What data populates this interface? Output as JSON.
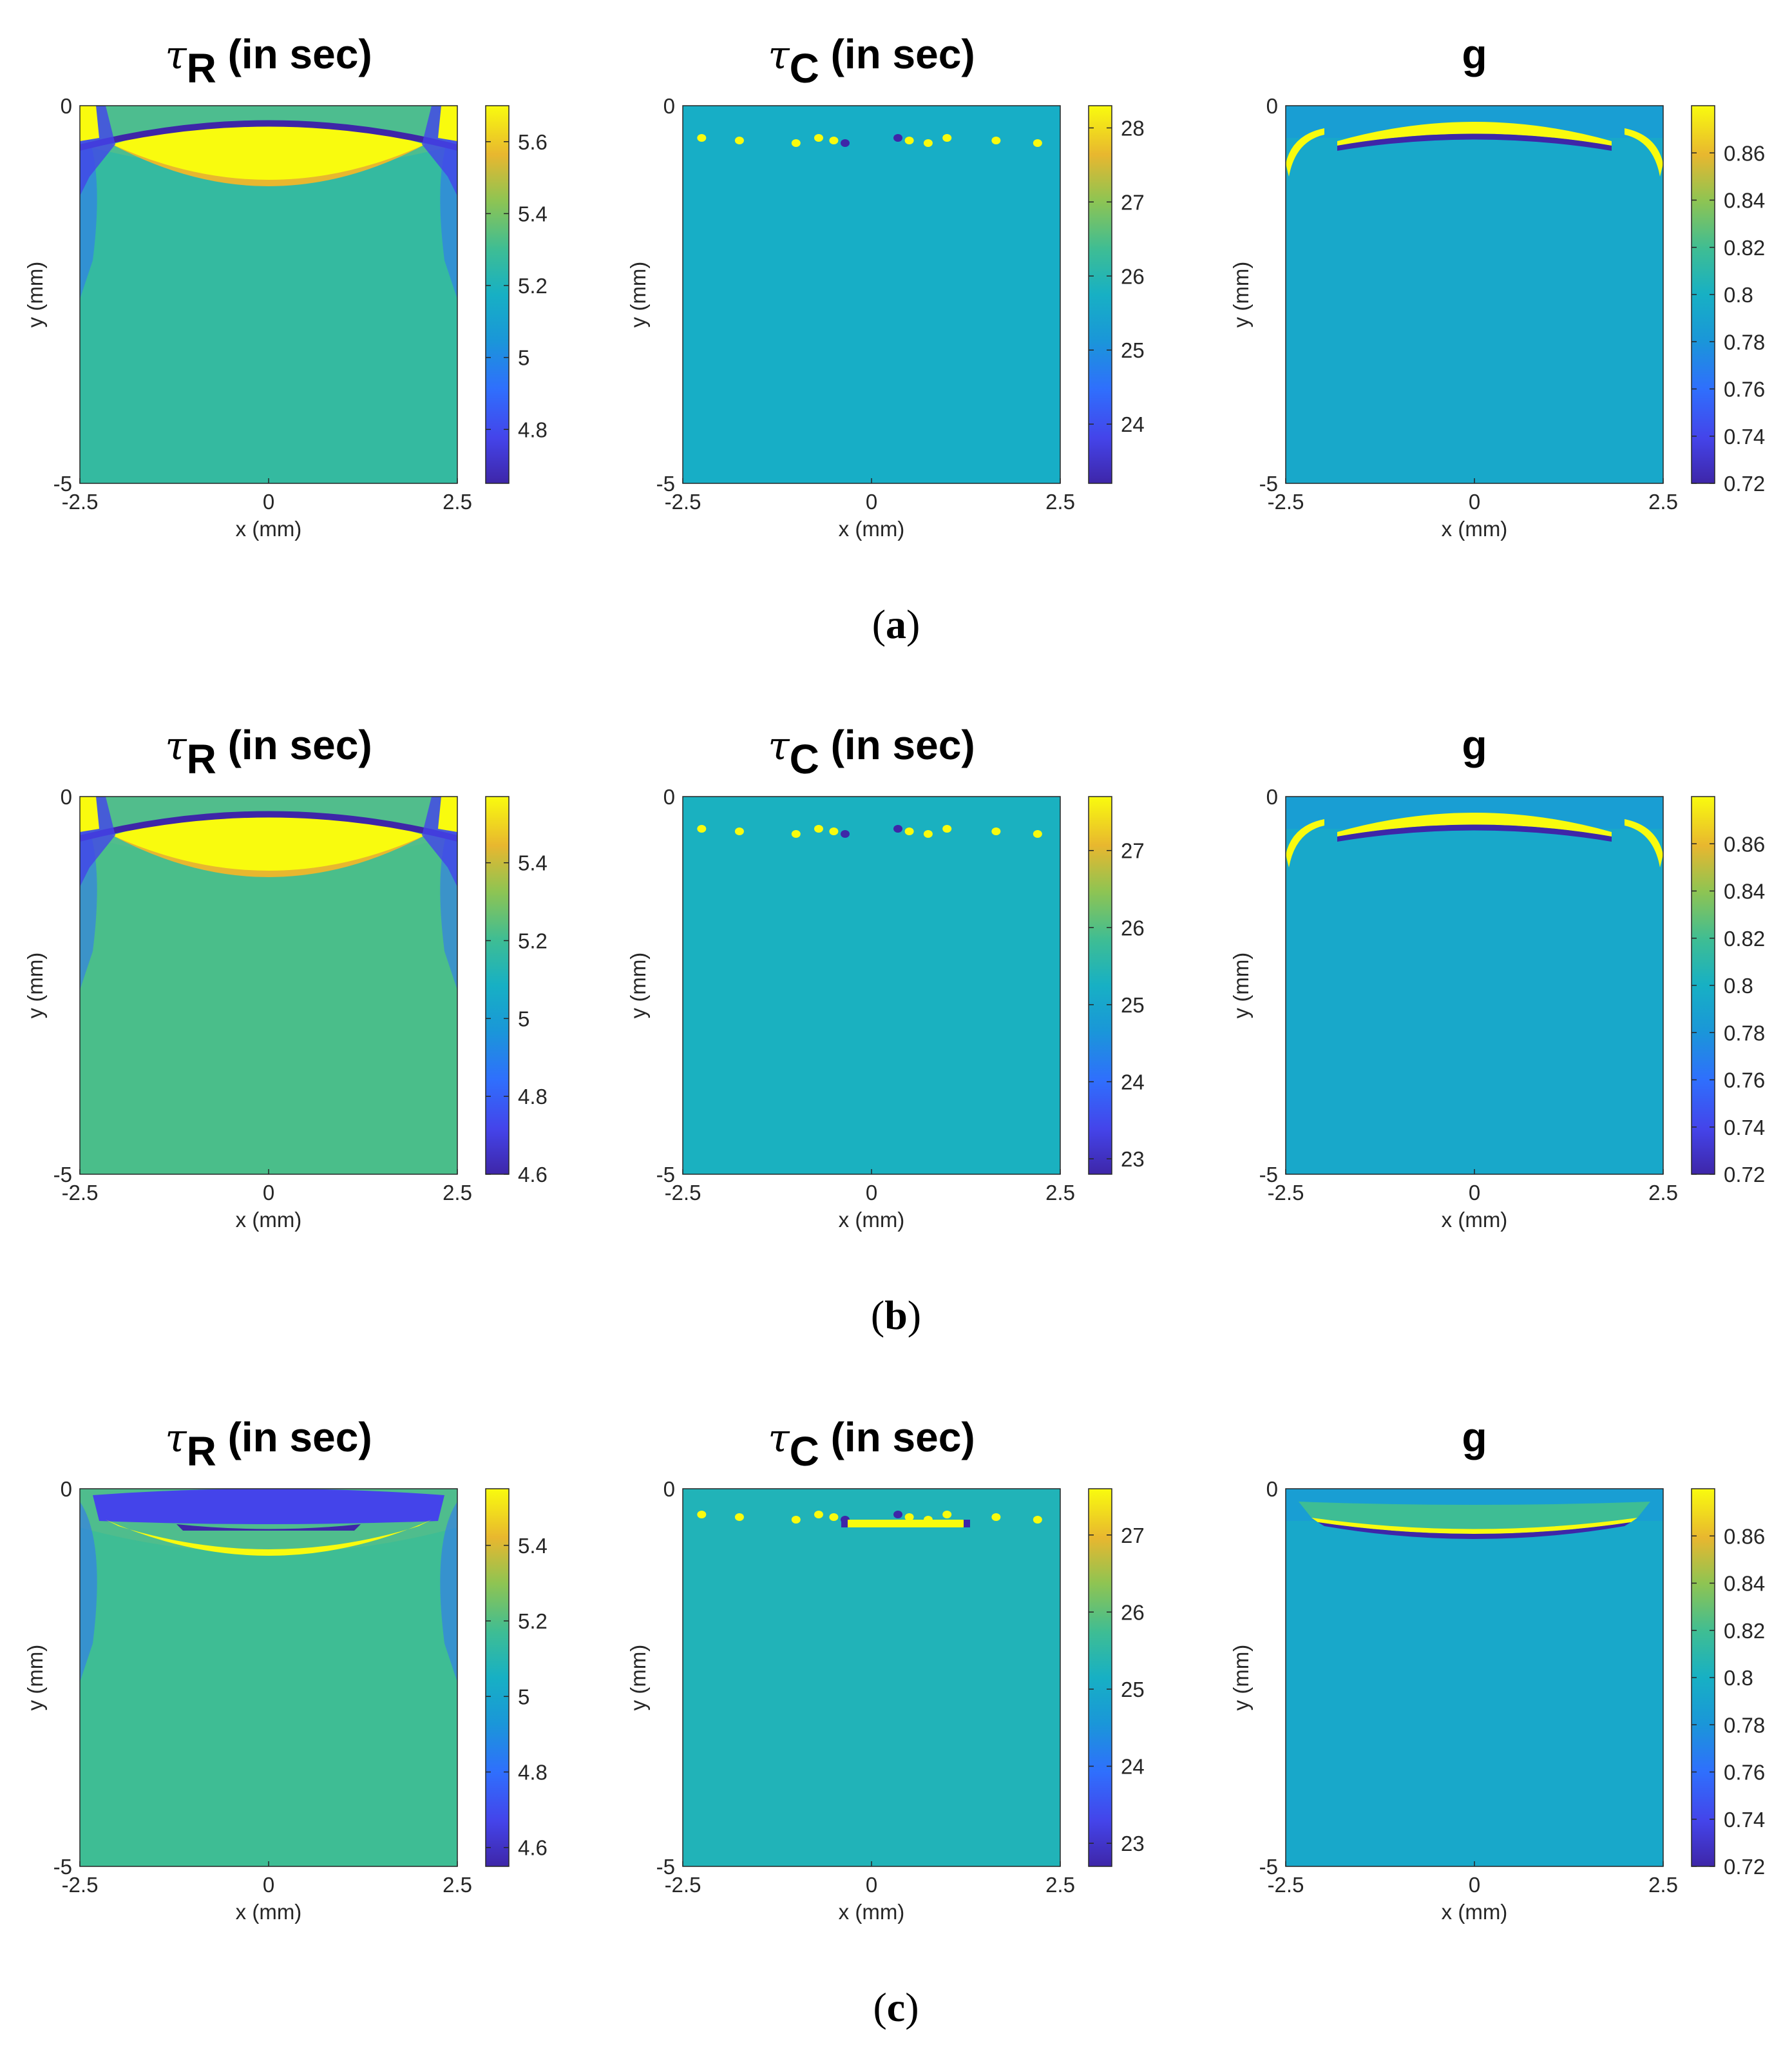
{
  "chart_data": [
    {
      "row": "a",
      "panels": [
        {
          "type": "heatmap",
          "title_symbol": "τ",
          "title_subscript": "R",
          "title_suffix": " (in sec)",
          "xlabel": "x (mm)",
          "ylabel": "y (mm)",
          "xlim": [
            -2.5,
            2.5
          ],
          "ylim": [
            -5,
            0
          ],
          "x_ticks": [
            "-2.5",
            "0",
            "2.5"
          ],
          "y_ticks": [
            "0",
            "-5"
          ],
          "colorbar_range": [
            4.65,
            5.7
          ],
          "colorbar_ticks": [
            "5.6",
            "5.4",
            "5.2",
            "5",
            "4.8"
          ],
          "colorbar_tick_values": [
            5.6,
            5.4,
            5.2,
            5.0,
            4.8
          ],
          "background_value": 5.27,
          "pattern": "tauR_a"
        },
        {
          "type": "heatmap",
          "title_symbol": "τ",
          "title_subscript": "C",
          "title_suffix": " (in sec)",
          "xlabel": "x (mm)",
          "ylabel": "y (mm)",
          "xlim": [
            -2.5,
            2.5
          ],
          "ylim": [
            -5,
            0
          ],
          "x_ticks": [
            "-2.5",
            "0",
            "2.5"
          ],
          "y_ticks": [
            "0",
            "-5"
          ],
          "colorbar_range": [
            23.2,
            28.3
          ],
          "colorbar_ticks": [
            "28",
            "27",
            "26",
            "25",
            "24"
          ],
          "colorbar_tick_values": [
            28,
            27,
            26,
            25,
            24
          ],
          "background_value": 25.7,
          "pattern": "dots"
        },
        {
          "type": "heatmap",
          "title_symbol": "",
          "title_subscript": "",
          "title_suffix": "g",
          "xlabel": "x (mm)",
          "ylabel": "y (mm)",
          "xlim": [
            -2.5,
            2.5
          ],
          "ylim": [
            -5,
            0
          ],
          "x_ticks": [
            "-2.5",
            "0",
            "2.5"
          ],
          "y_ticks": [
            "0",
            "-5"
          ],
          "colorbar_range": [
            0.72,
            0.88
          ],
          "colorbar_ticks": [
            "0.86",
            "0.84",
            "0.82",
            "0.8",
            "0.78",
            "0.76",
            "0.74",
            "0.72"
          ],
          "colorbar_tick_values": [
            0.86,
            0.84,
            0.82,
            0.8,
            0.78,
            0.76,
            0.74,
            0.72
          ],
          "background_value": 0.794,
          "pattern": "g"
        }
      ]
    },
    {
      "row": "b",
      "panels": [
        {
          "type": "heatmap",
          "title_symbol": "τ",
          "title_subscript": "R",
          "title_suffix": " (in sec)",
          "xlabel": "x (mm)",
          "ylabel": "y (mm)",
          "xlim": [
            -2.5,
            2.5
          ],
          "ylim": [
            -5,
            0
          ],
          "x_ticks": [
            "-2.5",
            "0",
            "2.5"
          ],
          "y_ticks": [
            "0",
            "-5"
          ],
          "colorbar_range": [
            4.6,
            5.57
          ],
          "colorbar_ticks": [
            "5.4",
            "5.2",
            "5",
            "4.8",
            "4.6"
          ],
          "colorbar_tick_values": [
            5.4,
            5.2,
            5.0,
            4.8,
            4.6
          ],
          "background_value": 5.22,
          "pattern": "tauR_b"
        },
        {
          "type": "heatmap",
          "title_symbol": "τ",
          "title_subscript": "C",
          "title_suffix": " (in sec)",
          "xlabel": "x (mm)",
          "ylabel": "y (mm)",
          "xlim": [
            -2.5,
            2.5
          ],
          "ylim": [
            -5,
            0
          ],
          "x_ticks": [
            "-2.5",
            "0",
            "2.5"
          ],
          "y_ticks": [
            "0",
            "-5"
          ],
          "colorbar_range": [
            22.8,
            27.7
          ],
          "colorbar_ticks": [
            "27",
            "26",
            "25",
            "24",
            "23"
          ],
          "colorbar_tick_values": [
            27,
            26,
            25,
            24,
            23
          ],
          "background_value": 25.3,
          "pattern": "dots"
        },
        {
          "type": "heatmap",
          "title_symbol": "",
          "title_subscript": "",
          "title_suffix": "g",
          "xlabel": "x (mm)",
          "ylabel": "y (mm)",
          "xlim": [
            -2.5,
            2.5
          ],
          "ylim": [
            -5,
            0
          ],
          "x_ticks": [
            "-2.5",
            "0",
            "2.5"
          ],
          "y_ticks": [
            "0",
            "-5"
          ],
          "colorbar_range": [
            0.72,
            0.88
          ],
          "colorbar_ticks": [
            "0.86",
            "0.84",
            "0.82",
            "0.8",
            "0.78",
            "0.76",
            "0.74",
            "0.72"
          ],
          "colorbar_tick_values": [
            0.86,
            0.84,
            0.82,
            0.8,
            0.78,
            0.76,
            0.74,
            0.72
          ],
          "background_value": 0.794,
          "pattern": "g"
        }
      ]
    },
    {
      "row": "c",
      "panels": [
        {
          "type": "heatmap",
          "title_symbol": "τ",
          "title_subscript": "R",
          "title_suffix": " (in sec)",
          "xlabel": "x (mm)",
          "ylabel": "y (mm)",
          "xlim": [
            -2.5,
            2.5
          ],
          "ylim": [
            -5,
            0
          ],
          "x_ticks": [
            "-2.5",
            "0",
            "2.5"
          ],
          "y_ticks": [
            "0",
            "-5"
          ],
          "colorbar_range": [
            4.55,
            5.55
          ],
          "colorbar_ticks": [
            "5.4",
            "5.2",
            "5",
            "4.8",
            "4.6"
          ],
          "colorbar_tick_values": [
            5.4,
            5.2,
            5.0,
            4.8,
            4.6
          ],
          "background_value": 5.17,
          "pattern": "tauR_c"
        },
        {
          "type": "heatmap",
          "title_symbol": "τ",
          "title_subscript": "C",
          "title_suffix": " (in sec)",
          "xlabel": "x (mm)",
          "ylabel": "y (mm)",
          "xlim": [
            -2.5,
            2.5
          ],
          "ylim": [
            -5,
            0
          ],
          "x_ticks": [
            "-2.5",
            "0",
            "2.5"
          ],
          "y_ticks": [
            "0",
            "-5"
          ],
          "colorbar_range": [
            22.7,
            27.6
          ],
          "colorbar_ticks": [
            "27",
            "26",
            "25",
            "24",
            "23"
          ],
          "colorbar_tick_values": [
            27,
            26,
            25,
            24,
            23
          ],
          "background_value": 25.3,
          "pattern": "dots_c"
        },
        {
          "type": "heatmap",
          "title_symbol": "",
          "title_subscript": "",
          "title_suffix": "g",
          "xlabel": "x (mm)",
          "ylabel": "y (mm)",
          "xlim": [
            -2.5,
            2.5
          ],
          "ylim": [
            -5,
            0
          ],
          "x_ticks": [
            "-2.5",
            "0",
            "2.5"
          ],
          "y_ticks": [
            "0",
            "-5"
          ],
          "colorbar_range": [
            0.72,
            0.88
          ],
          "colorbar_ticks": [
            "0.86",
            "0.84",
            "0.82",
            "0.8",
            "0.78",
            "0.76",
            "0.74",
            "0.72"
          ],
          "colorbar_tick_values": [
            0.86,
            0.84,
            0.82,
            0.8,
            0.78,
            0.76,
            0.74,
            0.72
          ],
          "background_value": 0.794,
          "pattern": "g_c"
        }
      ]
    }
  ],
  "row_labels": [
    {
      "open": "(",
      "letter": "a",
      "close": ")"
    },
    {
      "open": "(",
      "letter": "b",
      "close": ")"
    },
    {
      "open": "(",
      "letter": "c",
      "close": ")"
    }
  ]
}
